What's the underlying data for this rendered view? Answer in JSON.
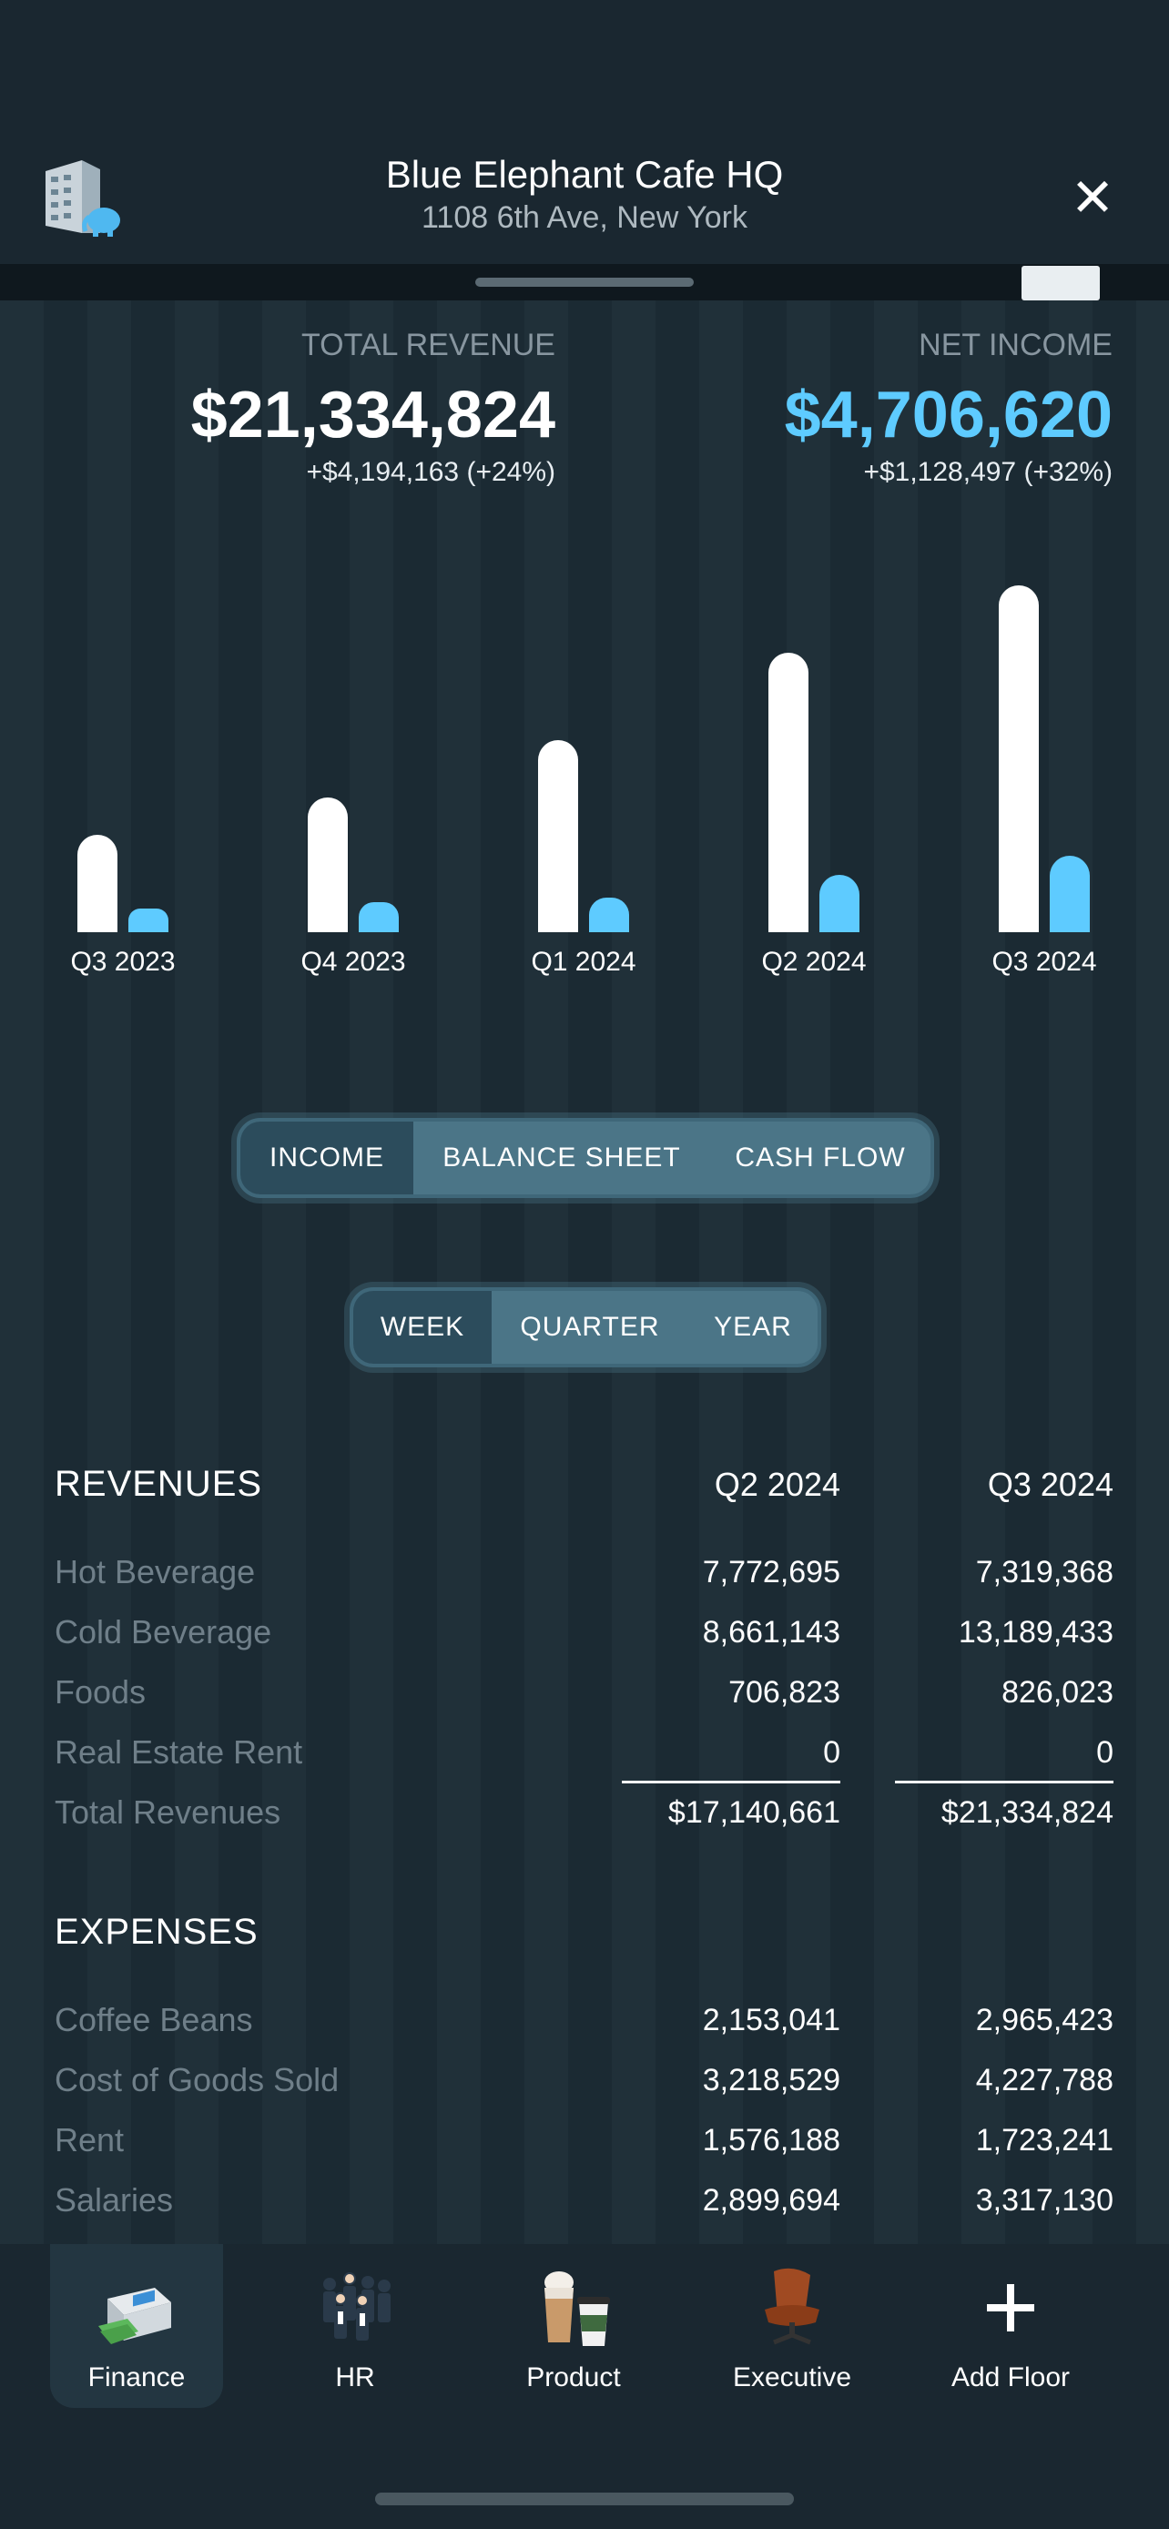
{
  "header": {
    "title": "Blue Elephant Cafe HQ",
    "subtitle": "1108 6th Ave, New York",
    "close_icon": "close-icon",
    "building_icon": "building-elephant-icon"
  },
  "kpis": {
    "total_revenue": {
      "label": "TOTAL REVENUE",
      "value": "$21,334,824",
      "delta": "+$4,194,163 (+24%)"
    },
    "net_income": {
      "label": "NET INCOME",
      "value": "$4,706,620",
      "delta": "+$1,128,497 (+32%)",
      "color": "#5ecbff"
    }
  },
  "chart_data": {
    "type": "bar",
    "categories": [
      "Q3 2023",
      "Q4 2023",
      "Q1 2024",
      "Q2 2024",
      "Q3 2024"
    ],
    "series": [
      {
        "values": [
          11.2,
          15.5,
          22.2,
          32.2,
          40.0
        ],
        "color": "#ffffff"
      },
      {
        "values": [
          2.7,
          3.5,
          4.0,
          6.6,
          8.8
        ],
        "color": "#5ecbff"
      }
    ],
    "ylim": [
      0,
      42
    ]
  },
  "statement_tabs": {
    "options": [
      "INCOME",
      "BALANCE SHEET",
      "CASH FLOW"
    ],
    "selected": "INCOME"
  },
  "period_tabs": {
    "options": [
      "WEEK",
      "QUARTER",
      "YEAR"
    ],
    "selected": "WEEK"
  },
  "revenues": {
    "title": "REVENUES",
    "columns": [
      "Q2 2024",
      "Q3 2024"
    ],
    "rows": [
      {
        "label": "Hot Beverage",
        "q2": "7,772,695",
        "q3": "7,319,368"
      },
      {
        "label": "Cold Beverage",
        "q2": "8,661,143",
        "q3": "13,189,433"
      },
      {
        "label": "Foods",
        "q2": "706,823",
        "q3": "826,023"
      },
      {
        "label": "Real Estate Rent",
        "q2": "0",
        "q3": "0"
      },
      {
        "label": "Total Revenues",
        "q2": "$17,140,661",
        "q3": "$21,334,824"
      }
    ]
  },
  "expenses": {
    "title": "EXPENSES",
    "rows": [
      {
        "label": "Coffee Beans",
        "q2": "2,153,041",
        "q3": "2,965,423"
      },
      {
        "label": "Cost of Goods Sold",
        "q2": "3,218,529",
        "q3": "4,227,788"
      },
      {
        "label": "Rent",
        "q2": "1,576,188",
        "q3": "1,723,241"
      },
      {
        "label": "Salaries",
        "q2": "2,899,694",
        "q3": "3,317,130"
      }
    ]
  },
  "nav": {
    "items": [
      {
        "label": "Finance",
        "icon": "cash-counter-icon",
        "active": true
      },
      {
        "label": "HR",
        "icon": "people-group-icon"
      },
      {
        "label": "Product",
        "icon": "coffee-cups-icon"
      },
      {
        "label": "Executive",
        "icon": "office-chair-icon"
      },
      {
        "label": "Add Floor",
        "icon": "plus-icon"
      }
    ]
  }
}
